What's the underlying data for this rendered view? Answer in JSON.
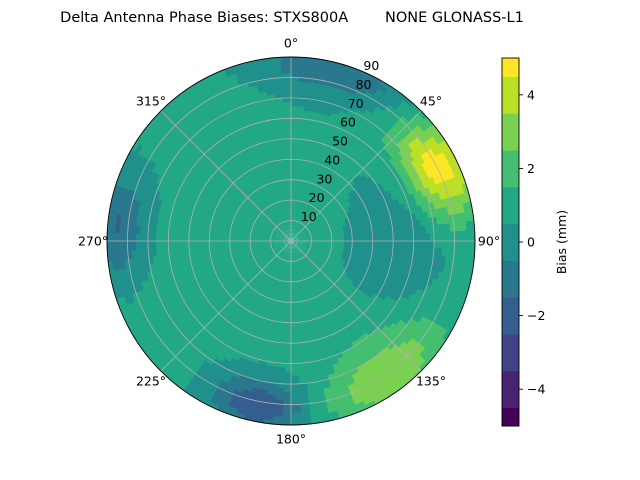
{
  "chart_data": {
    "type": "heatmap",
    "title": "Delta Antenna Phase Biases: STXS800A        NONE GLONASS-L1",
    "projection": "polar",
    "angular_axis": {
      "tick_labels": [
        "0°",
        "45°",
        "90°",
        "135°",
        "180°",
        "225°",
        "270°",
        "315°"
      ],
      "tick_values": [
        0,
        45,
        90,
        135,
        180,
        225,
        270,
        315
      ],
      "direction": "clockwise",
      "zero_location": "top"
    },
    "radial_axis": {
      "tick_labels": [
        "10",
        "20",
        "30",
        "40",
        "50",
        "60",
        "70",
        "80",
        "90"
      ],
      "tick_values": [
        10,
        20,
        30,
        40,
        50,
        60,
        70,
        80,
        90
      ],
      "range": [
        0,
        90
      ]
    },
    "grid": true,
    "colorbar": {
      "label": "Bias (mm)",
      "range": [
        -5,
        5
      ],
      "levels": [
        -5,
        -4.5,
        -4,
        -3.5,
        -3,
        -2.5,
        -2,
        -1.5,
        -1,
        -0.5,
        0,
        0.5,
        1,
        1.5,
        2,
        2.5,
        3,
        3.5,
        4,
        4.5,
        5
      ],
      "tick_labels": [
        "−4",
        "−2",
        "0",
        "2",
        "4"
      ],
      "tick_values": [
        -4,
        -2,
        0,
        2,
        4
      ],
      "colormap": "viridis",
      "colors": [
        "#440154",
        "#482374",
        "#404387",
        "#345e8d",
        "#29788e",
        "#20908d",
        "#22a884",
        "#44bf70",
        "#7ad151",
        "#bcdf27",
        "#fde725"
      ]
    },
    "features": [
      {
        "azimuth": 65,
        "elevation": 85,
        "value": 3.7,
        "spread_az": 12,
        "spread_el": 12
      },
      {
        "azimuth": 60,
        "elevation": 75,
        "value": 2.8,
        "spread_az": 16,
        "spread_el": 10
      },
      {
        "azimuth": 145,
        "elevation": 82,
        "value": 2.9,
        "spread_az": 16,
        "spread_el": 10
      },
      {
        "azimuth": 138,
        "elevation": 65,
        "value": 1.6,
        "spread_az": 20,
        "spread_el": 15
      },
      {
        "azimuth": 192,
        "elevation": 82,
        "value": -2.5,
        "spread_az": 12,
        "spread_el": 10
      },
      {
        "azimuth": 275,
        "elevation": 85,
        "value": -1.6,
        "spread_az": 12,
        "spread_el": 9
      },
      {
        "azimuth": 330,
        "elevation": 75,
        "value": 1.3,
        "spread_az": 15,
        "spread_el": 16
      },
      {
        "azimuth": 100,
        "elevation": 55,
        "value": -0.4,
        "spread_az": 25,
        "spread_el": 15
      },
      {
        "azimuth": 200,
        "elevation": 40,
        "value": 0.7,
        "spread_az": 40,
        "spread_el": 25
      },
      {
        "azimuth": 15,
        "elevation": 86,
        "value": -1.1,
        "spread_az": 20,
        "spread_el": 8
      }
    ]
  }
}
